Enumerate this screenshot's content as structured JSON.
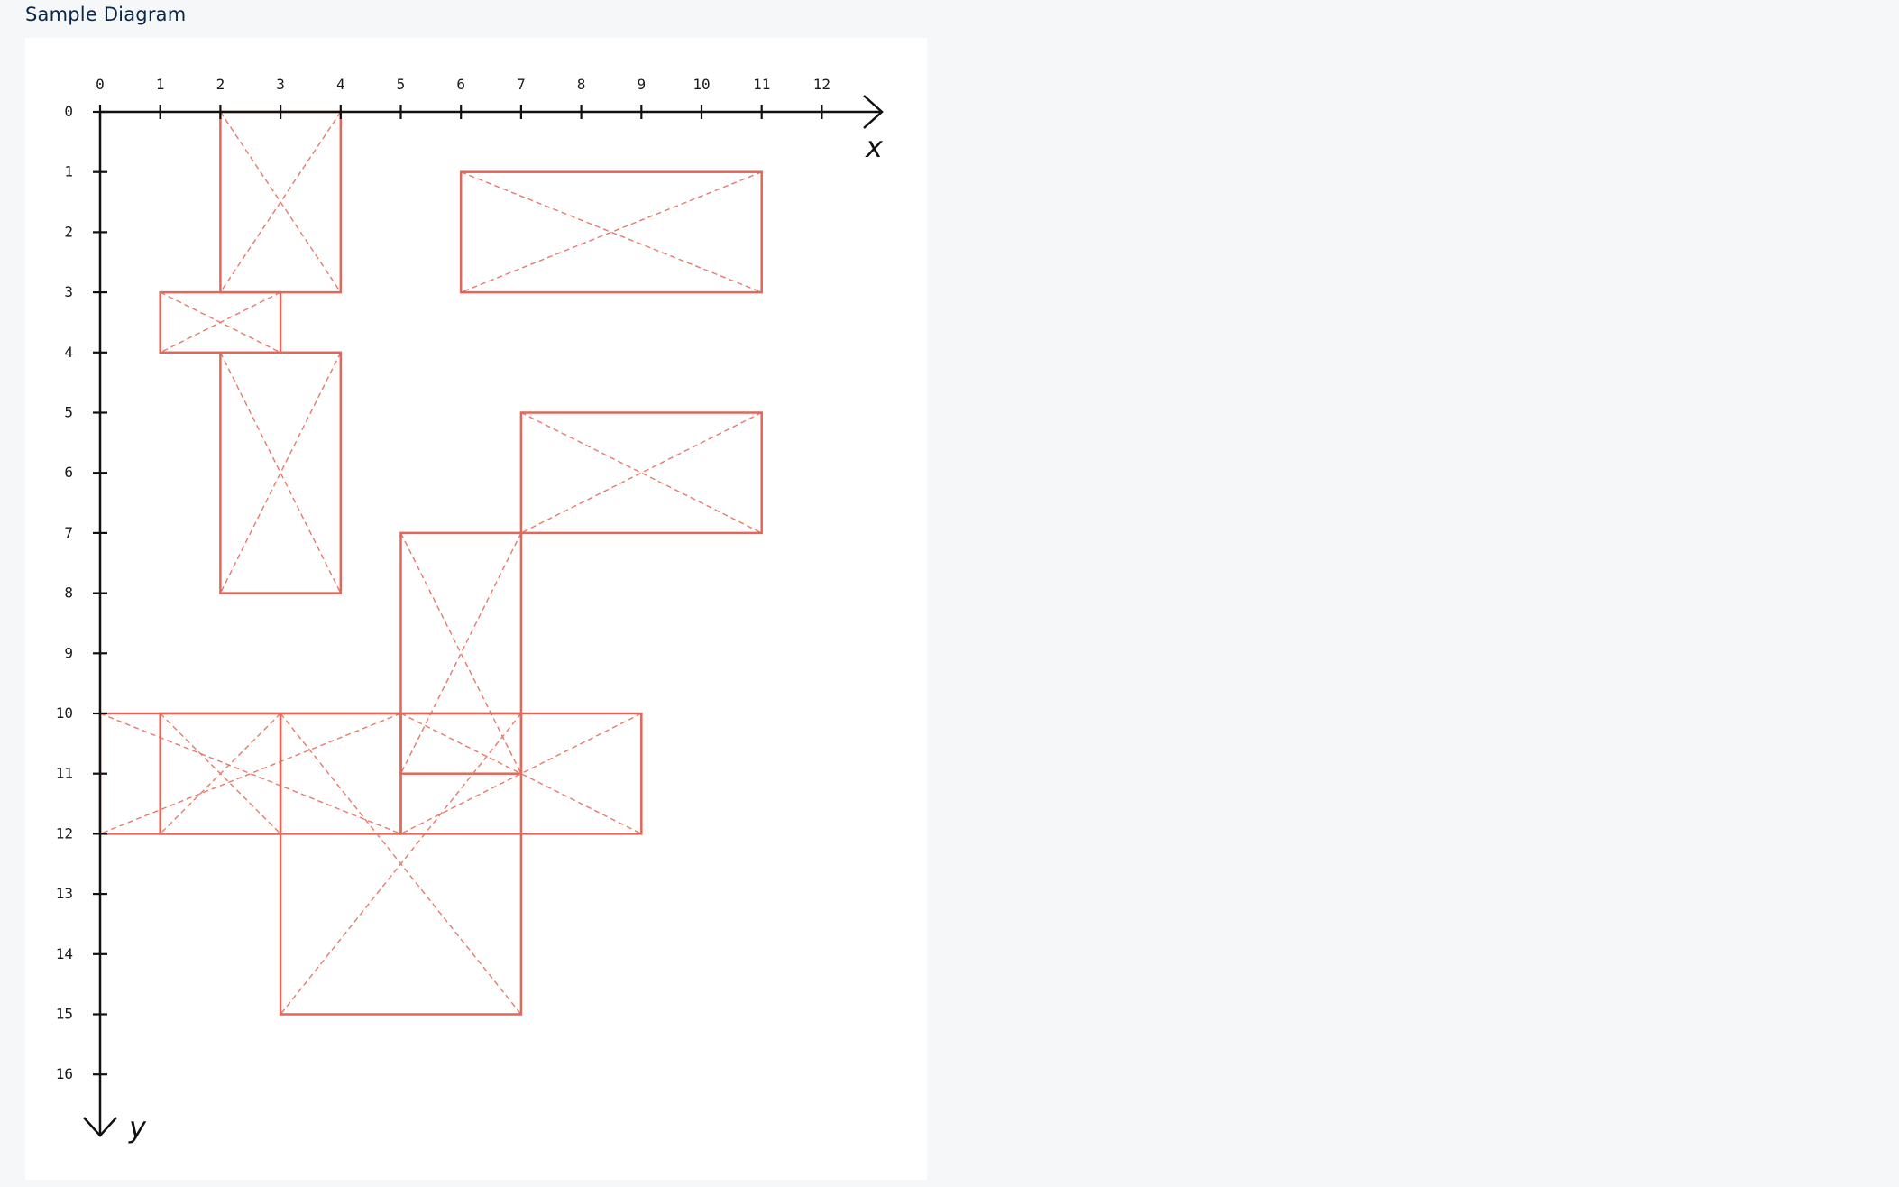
{
  "page": {
    "title": "Sample Diagram"
  },
  "colors": {
    "background": "#f6f7f9",
    "panel": "#ffffff",
    "axis": "#111111",
    "rect_stroke": "#e0675a",
    "rect_diagonal": "#e8796c",
    "title_text": "#0c2746"
  },
  "diagram": {
    "x_axis_label": "x",
    "y_axis_label": "y",
    "x_ticks": [
      "0",
      "1",
      "2",
      "3",
      "4",
      "5",
      "6",
      "7",
      "8",
      "9",
      "10",
      "11",
      "12"
    ],
    "y_ticks": [
      "0",
      "1",
      "2",
      "3",
      "4",
      "5",
      "6",
      "7",
      "8",
      "9",
      "10",
      "11",
      "12",
      "13",
      "14",
      "15",
      "16"
    ],
    "rectangles": [
      {
        "x1": 2,
        "y1": 0,
        "x2": 4,
        "y2": 3
      },
      {
        "x1": 6,
        "y1": 1,
        "x2": 11,
        "y2": 3
      },
      {
        "x1": 1,
        "y1": 3,
        "x2": 3,
        "y2": 4
      },
      {
        "x1": 2,
        "y1": 4,
        "x2": 4,
        "y2": 8
      },
      {
        "x1": 7,
        "y1": 5,
        "x2": 11,
        "y2": 7
      },
      {
        "x1": 5,
        "y1": 7,
        "x2": 7,
        "y2": 11
      },
      {
        "x1": 0,
        "y1": 10,
        "x2": 5,
        "y2": 12
      },
      {
        "x1": 1,
        "y1": 10,
        "x2": 3,
        "y2": 12
      },
      {
        "x1": 3,
        "y1": 10,
        "x2": 7,
        "y2": 15
      },
      {
        "x1": 5,
        "y1": 10,
        "x2": 9,
        "y2": 12
      }
    ]
  }
}
